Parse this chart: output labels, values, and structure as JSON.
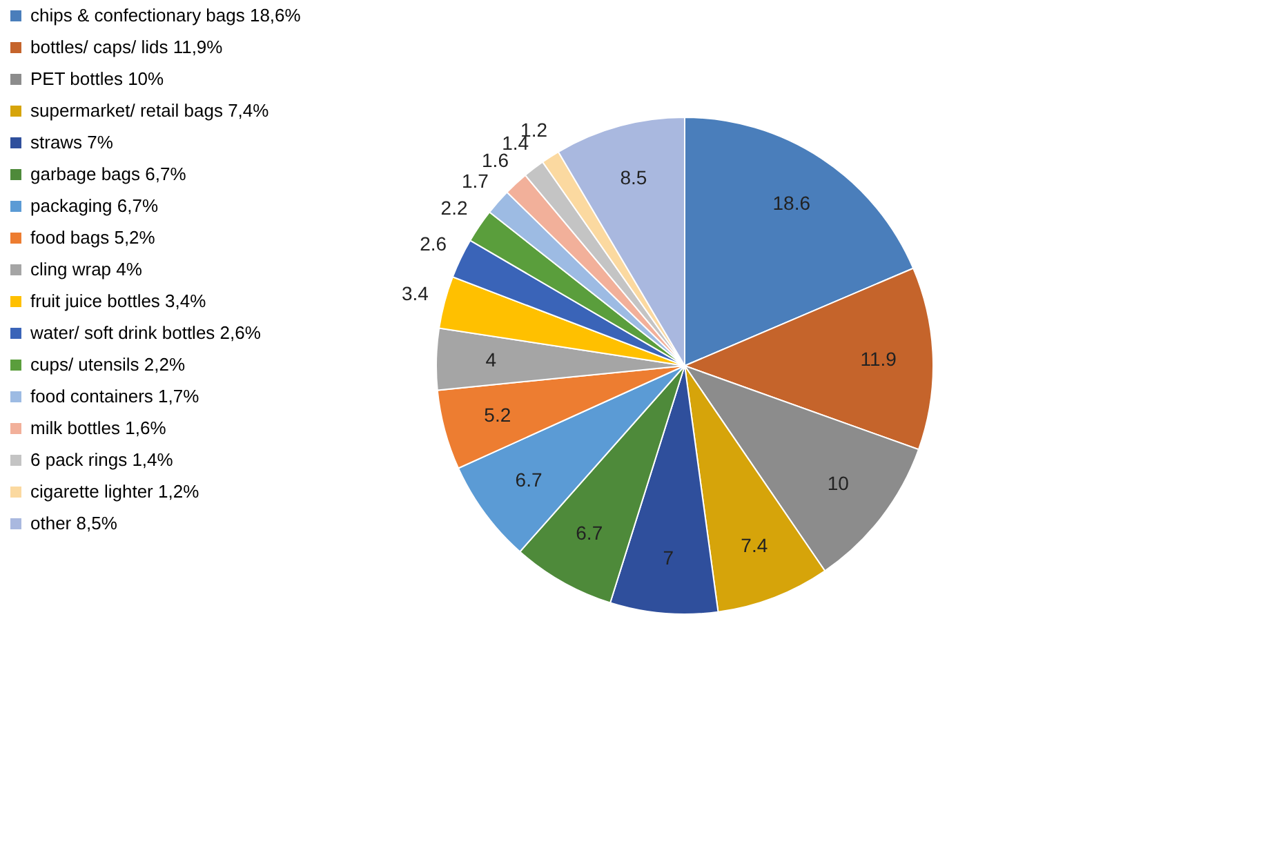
{
  "chart_data": {
    "type": "pie",
    "categories": [
      "chips & confectionary bags 18,6%",
      "bottles/ caps/ lids 11,9%",
      "PET bottles 10%",
      "supermarket/ retail bags 7,4%",
      "straws 7%",
      "garbage bags 6,7%",
      "packaging 6,7%",
      "food bags 5,2%",
      "cling wrap 4%",
      "fruit juice bottles 3,4%",
      "water/ soft drink bottles 2,6%",
      "cups/ utensils 2,2%",
      "food containers 1,7%",
      "milk bottles 1,6%",
      "6 pack rings 1,4%",
      "cigarette lighter 1,2%",
      "other 8,5%"
    ],
    "values": [
      18.6,
      11.9,
      10,
      7.4,
      7,
      6.7,
      6.7,
      5.2,
      4,
      3.4,
      2.6,
      2.2,
      1.7,
      1.6,
      1.4,
      1.2,
      8.5
    ],
    "colors": [
      "#4a7ebb",
      "#c5642b",
      "#8c8c8c",
      "#d6a40a",
      "#2f4f9c",
      "#4e8a3a",
      "#5b9bd5",
      "#ed7d31",
      "#a5a5a5",
      "#ffc000",
      "#3a64b8",
      "#5a9e3c",
      "#9dbbe3",
      "#f2b09a",
      "#c4c4c4",
      "#fbd9a0",
      "#a9b8df"
    ],
    "data_labels": true,
    "legend": "left"
  }
}
